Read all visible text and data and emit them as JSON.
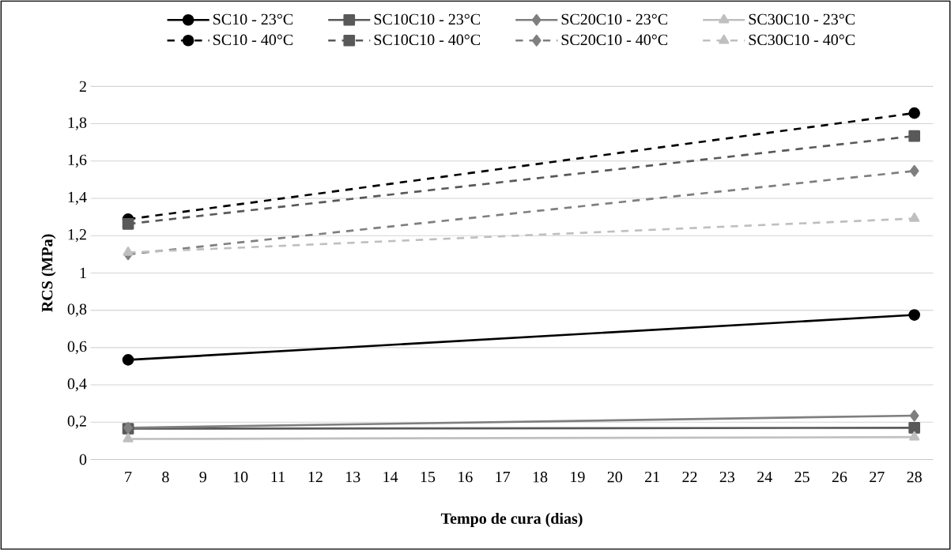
{
  "chart_data": {
    "type": "line",
    "xlabel": "Tempo de cura (dias)",
    "ylabel": "RCS (MPa)",
    "x": [
      7,
      28
    ],
    "xlim": [
      6,
      28.5
    ],
    "xticks": [
      7,
      8,
      9,
      10,
      11,
      12,
      13,
      14,
      15,
      16,
      17,
      18,
      19,
      20,
      21,
      22,
      23,
      24,
      25,
      26,
      27,
      28
    ],
    "ylim": [
      0,
      2
    ],
    "yticks": [
      0,
      {
        "value": 0.2,
        "label": "0,2"
      },
      {
        "value": 0.4,
        "label": "0,4"
      },
      {
        "value": 0.6,
        "label": "0,6"
      },
      {
        "value": 0.8,
        "label": "0,8"
      },
      1,
      {
        "value": 1.2,
        "label": "1,2"
      },
      {
        "value": 1.4,
        "label": "1,4"
      },
      {
        "value": 1.6,
        "label": "1,6"
      },
      {
        "value": 1.8,
        "label": "1,8"
      },
      2
    ],
    "grid": "y",
    "legend": "top",
    "series": [
      {
        "name": "SC10 - 23°C",
        "color": "#000000",
        "marker": "circle",
        "line_style": "solid",
        "values": [
          0.534,
          0.775
        ]
      },
      {
        "name": "SC10C10 - 23°C",
        "color": "#595959",
        "marker": "square",
        "line_style": "solid",
        "values": [
          0.165,
          0.17
        ]
      },
      {
        "name": "SC20C10 - 23°C",
        "color": "#7f7f7f",
        "marker": "diamond",
        "line_style": "solid",
        "values": [
          0.17,
          0.235
        ]
      },
      {
        "name": "SC30C10 - 23°C",
        "color": "#bfbfbf",
        "marker": "triangle",
        "line_style": "solid",
        "values": [
          0.11,
          0.12
        ]
      },
      {
        "name": "SC10 - 40°C",
        "color": "#000000",
        "marker": "circle",
        "line_style": "dashed",
        "values": [
          1.288,
          1.857
        ]
      },
      {
        "name": "SC10C10 - 40°C",
        "color": "#595959",
        "marker": "square",
        "line_style": "dashed",
        "values": [
          1.263,
          1.734
        ]
      },
      {
        "name": "SC20C10 - 40°C",
        "color": "#7f7f7f",
        "marker": "diamond",
        "line_style": "dashed",
        "values": [
          1.1,
          1.547
        ]
      },
      {
        "name": "SC30C10 - 40°C",
        "color": "#bfbfbf",
        "marker": "triangle",
        "line_style": "dashed",
        "values": [
          1.11,
          1.292
        ]
      }
    ]
  }
}
